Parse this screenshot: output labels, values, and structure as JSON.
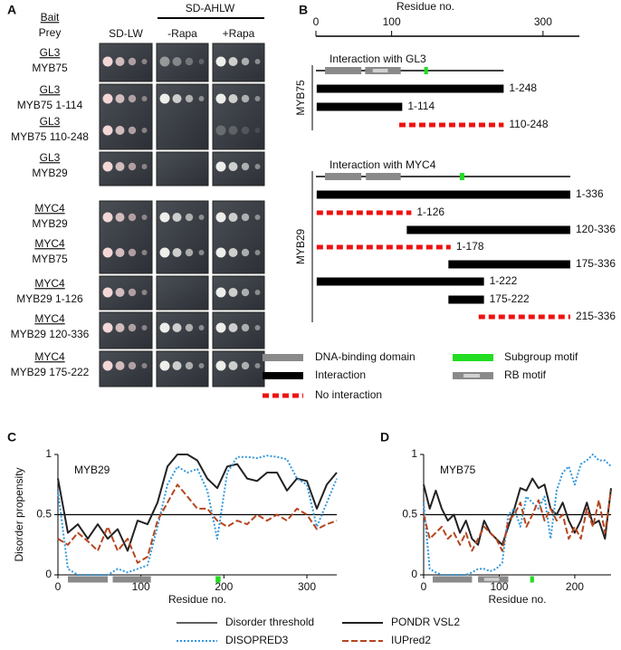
{
  "panel_a": {
    "letter": "A",
    "bait_header": "Bait",
    "prey_header": "Prey",
    "group_header": "SD-AHLW",
    "columns": [
      "SD-LW",
      "-Rapa",
      "+Rapa"
    ],
    "rows": [
      {
        "bait": "GL3",
        "prey": "MYB75"
      },
      {
        "bait": "GL3",
        "prey": "MYB75 1-114"
      },
      {
        "bait": "GL3",
        "prey": "MYB75 110-248"
      },
      {
        "bait": "GL3",
        "prey": "MYB29"
      },
      {
        "bait": "MYC4",
        "prey": "MYB29"
      },
      {
        "bait": "MYC4",
        "prey": "MYB75"
      },
      {
        "bait": "MYC4",
        "prey": "MYB29 1-126"
      },
      {
        "bait": "MYC4",
        "prey": "MYB29 120-336"
      },
      {
        "bait": "MYC4",
        "prey": "MYB29 175-222"
      }
    ]
  },
  "panel_b": {
    "letter": "B",
    "axis_title": "Residue no.",
    "xlim": [
      0,
      348
    ],
    "xticks": [
      0,
      100,
      300
    ],
    "proteins": [
      {
        "name": "MYB75",
        "track_title": "Interaction with GL3",
        "length": 248,
        "dna_binding": [
          [
            12,
            60
          ],
          [
            65,
            112
          ]
        ],
        "rb_motif": [
          75,
          95
        ],
        "subgroup_motif": [
          143,
          148
        ],
        "constructs": [
          {
            "label": "1-248",
            "start": 1,
            "end": 248,
            "interaction": true
          },
          {
            "label": "1-114",
            "start": 1,
            "end": 114,
            "interaction": true
          },
          {
            "label": "110-248",
            "start": 110,
            "end": 248,
            "interaction": false
          }
        ]
      },
      {
        "name": "MYB29",
        "track_title": "Interaction with MYC4",
        "length": 336,
        "dna_binding": [
          [
            12,
            60
          ],
          [
            66,
            112
          ]
        ],
        "subgroup_motif": [
          190,
          196
        ],
        "constructs": [
          {
            "label": "1-336",
            "start": 1,
            "end": 336,
            "interaction": true
          },
          {
            "label": "1-126",
            "start": 1,
            "end": 126,
            "interaction": false
          },
          {
            "label": "120-336",
            "start": 120,
            "end": 336,
            "interaction": true
          },
          {
            "label": "1-178",
            "start": 1,
            "end": 178,
            "interaction": false
          },
          {
            "label": "175-336",
            "start": 175,
            "end": 336,
            "interaction": true
          },
          {
            "label": "1-222",
            "start": 1,
            "end": 222,
            "interaction": true
          },
          {
            "label": "175-222",
            "start": 175,
            "end": 222,
            "interaction": true
          },
          {
            "label": "215-336",
            "start": 215,
            "end": 336,
            "interaction": false
          }
        ]
      }
    ],
    "legend": {
      "dna_binding": "DNA-binding domain",
      "subgroup_motif": "Subgroup motif",
      "interaction": "Interaction",
      "rb_motif": "RB motif",
      "no_interaction": "No interaction"
    },
    "colors": {
      "domain": "#8a8a8a",
      "rb": "#d0d0d0",
      "motif": "#22dd22",
      "interaction": "#000000",
      "no_interaction": "#ee1111"
    }
  },
  "chart_data": [
    {
      "type": "line",
      "panel": "C",
      "label": "MYB29",
      "ylabel": "Disorder propensity",
      "xlabel": "Residue no.",
      "xlim": [
        0,
        336
      ],
      "xticks": [
        0,
        100,
        200,
        300
      ],
      "ylim": [
        0,
        1
      ],
      "yticks": [
        0,
        0.5,
        1
      ],
      "dna_binding": [
        [
          12,
          60
        ],
        [
          66,
          112
        ]
      ],
      "subgroup_motif": [
        190,
        196
      ],
      "x": [
        0,
        12,
        24,
        36,
        48,
        60,
        72,
        84,
        96,
        108,
        120,
        132,
        144,
        156,
        168,
        180,
        192,
        204,
        216,
        228,
        240,
        252,
        264,
        276,
        288,
        300,
        312,
        324,
        336
      ],
      "series": [
        {
          "name": "Disorder threshold",
          "color": "#000000",
          "line_style": "solid",
          "line_width": 1.2,
          "values": [
            0.5,
            0.5,
            0.5,
            0.5,
            0.5,
            0.5,
            0.5,
            0.5,
            0.5,
            0.5,
            0.5,
            0.5,
            0.5,
            0.5,
            0.5,
            0.5,
            0.5,
            0.5,
            0.5,
            0.5,
            0.5,
            0.5,
            0.5,
            0.5,
            0.5,
            0.5,
            0.5,
            0.5,
            0.5
          ]
        },
        {
          "name": "PONDR VSL2",
          "color": "#222222",
          "line_style": "solid",
          "line_width": 2,
          "values": [
            0.8,
            0.35,
            0.42,
            0.3,
            0.42,
            0.3,
            0.38,
            0.2,
            0.45,
            0.42,
            0.6,
            0.9,
            1.0,
            1.0,
            0.95,
            0.8,
            0.72,
            0.9,
            0.92,
            0.8,
            0.78,
            0.85,
            0.85,
            0.7,
            0.8,
            0.78,
            0.55,
            0.75,
            0.85
          ]
        },
        {
          "name": "DISOPRED3",
          "color": "#3399dd",
          "line_style": "dotted",
          "line_width": 2,
          "values": [
            0.7,
            0.05,
            0.0,
            0.0,
            0.0,
            0.0,
            0.05,
            0.02,
            0.05,
            0.08,
            0.4,
            0.75,
            0.9,
            0.85,
            0.88,
            0.7,
            0.3,
            0.85,
            0.98,
            0.98,
            0.97,
            0.99,
            0.98,
            0.96,
            0.8,
            0.75,
            0.4,
            0.6,
            0.8
          ]
        },
        {
          "name": "IUPred2",
          "color": "#b5461e",
          "line_style": "dashed",
          "line_width": 2,
          "values": [
            0.3,
            0.25,
            0.35,
            0.28,
            0.2,
            0.4,
            0.2,
            0.3,
            0.1,
            0.15,
            0.45,
            0.6,
            0.75,
            0.65,
            0.55,
            0.55,
            0.45,
            0.4,
            0.45,
            0.42,
            0.5,
            0.45,
            0.5,
            0.45,
            0.55,
            0.5,
            0.38,
            0.42,
            0.45
          ]
        }
      ]
    },
    {
      "type": "line",
      "panel": "D",
      "label": "MYB75",
      "xlabel": "Residue no.",
      "xlim": [
        0,
        248
      ],
      "xticks": [
        0,
        100,
        200
      ],
      "ylim": [
        0,
        1
      ],
      "yticks": [
        0,
        0.5,
        1
      ],
      "dna_binding": [
        [
          12,
          64
        ],
        [
          72,
          112
        ]
      ],
      "rb_motif": [
        80,
        100
      ],
      "subgroup_motif": [
        141,
        146
      ],
      "x": [
        0,
        8,
        16,
        24,
        32,
        40,
        48,
        56,
        64,
        72,
        80,
        88,
        96,
        104,
        112,
        120,
        128,
        136,
        144,
        152,
        160,
        168,
        176,
        184,
        192,
        200,
        208,
        216,
        224,
        232,
        240,
        248
      ],
      "series": [
        {
          "name": "Disorder threshold",
          "color": "#000000",
          "line_style": "solid",
          "line_width": 1.2,
          "values": [
            0.5,
            0.5,
            0.5,
            0.5,
            0.5,
            0.5,
            0.5,
            0.5,
            0.5,
            0.5,
            0.5,
            0.5,
            0.5,
            0.5,
            0.5,
            0.5,
            0.5,
            0.5,
            0.5,
            0.5,
            0.5,
            0.5,
            0.5,
            0.5,
            0.5,
            0.5,
            0.5,
            0.5,
            0.5,
            0.5,
            0.5,
            0.5
          ]
        },
        {
          "name": "PONDR VSL2",
          "color": "#222222",
          "line_style": "solid",
          "line_width": 2,
          "values": [
            0.75,
            0.55,
            0.7,
            0.55,
            0.45,
            0.5,
            0.35,
            0.45,
            0.3,
            0.25,
            0.45,
            0.35,
            0.3,
            0.25,
            0.4,
            0.55,
            0.72,
            0.7,
            0.8,
            0.72,
            0.75,
            0.55,
            0.5,
            0.6,
            0.45,
            0.35,
            0.45,
            0.6,
            0.42,
            0.45,
            0.3,
            0.72
          ]
        },
        {
          "name": "DISOPRED3",
          "color": "#3399dd",
          "line_style": "dotted",
          "line_width": 2,
          "values": [
            0.6,
            0.05,
            0.02,
            0.0,
            0.0,
            0.0,
            0.0,
            0.0,
            0.02,
            0.05,
            0.05,
            0.03,
            0.05,
            0.1,
            0.5,
            0.55,
            0.4,
            0.65,
            0.6,
            0.55,
            0.65,
            0.3,
            0.7,
            0.85,
            0.9,
            0.75,
            0.92,
            0.95,
            1.0,
            0.95,
            0.95,
            0.9
          ]
        },
        {
          "name": "IUPred2",
          "color": "#b5461e",
          "line_style": "dashed",
          "line_width": 2,
          "values": [
            0.5,
            0.3,
            0.35,
            0.4,
            0.3,
            0.35,
            0.25,
            0.35,
            0.2,
            0.3,
            0.4,
            0.35,
            0.3,
            0.2,
            0.45,
            0.5,
            0.6,
            0.4,
            0.5,
            0.62,
            0.45,
            0.55,
            0.45,
            0.5,
            0.3,
            0.4,
            0.3,
            0.55,
            0.4,
            0.62,
            0.35,
            0.7
          ]
        }
      ]
    }
  ]
}
